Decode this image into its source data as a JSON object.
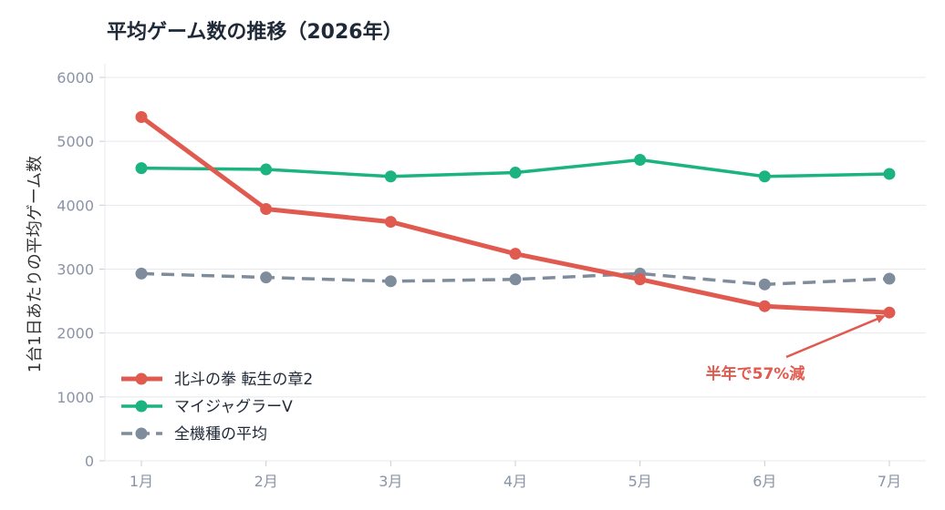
{
  "chart_data": {
    "type": "line",
    "title": "平均ゲーム数の推移（2026年）",
    "ylabel": "1台1日あたりの平均ゲーム数",
    "xlabel": "",
    "categories": [
      "1月",
      "2月",
      "3月",
      "4月",
      "5月",
      "6月",
      "7月"
    ],
    "ylim": [
      0,
      6000
    ],
    "yticks": [
      "0",
      "1000",
      "2000",
      "3000",
      "4000",
      "5000",
      "6000"
    ],
    "grid": true,
    "legend_position": "bottom-left",
    "series": [
      {
        "name": "北斗の拳 転生の章2",
        "values": [
          5380,
          3940,
          3740,
          3240,
          2840,
          2420,
          2320
        ],
        "color": "#e05a4f",
        "style": "solid"
      },
      {
        "name": "マイジャグラーV",
        "values": [
          4580,
          4560,
          4450,
          4510,
          4710,
          4450,
          4490
        ],
        "color": "#1bb37f",
        "style": "solid"
      },
      {
        "name": "全機種の平均",
        "values": [
          2930,
          2870,
          2810,
          2840,
          2930,
          2760,
          2850
        ],
        "color": "#7f8c9c",
        "style": "dashed"
      }
    ],
    "annotation": {
      "text": "半年で57%減",
      "color": "#e05a4f",
      "target_series": 0,
      "target_index": 6
    }
  }
}
